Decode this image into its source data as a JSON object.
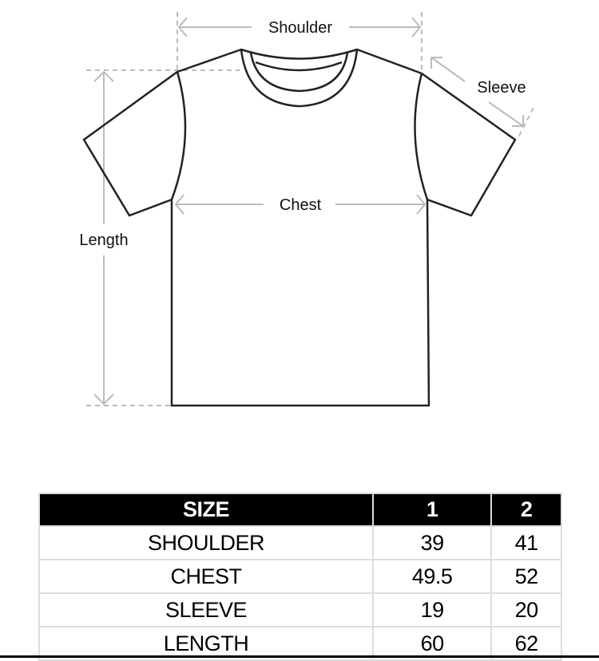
{
  "diagram": {
    "labels": {
      "shoulder": "Shoulder",
      "sleeve": "Sleeve",
      "chest": "Chest",
      "length": "Length"
    }
  },
  "size_table": {
    "headers": [
      "SIZE",
      "1",
      "2"
    ],
    "rows": [
      [
        "SHOULDER",
        "39",
        "41"
      ],
      [
        "CHEST",
        "49.5",
        "52"
      ],
      [
        "SLEEVE",
        "19",
        "20"
      ],
      [
        "LENGTH",
        "60",
        "62"
      ]
    ]
  }
}
